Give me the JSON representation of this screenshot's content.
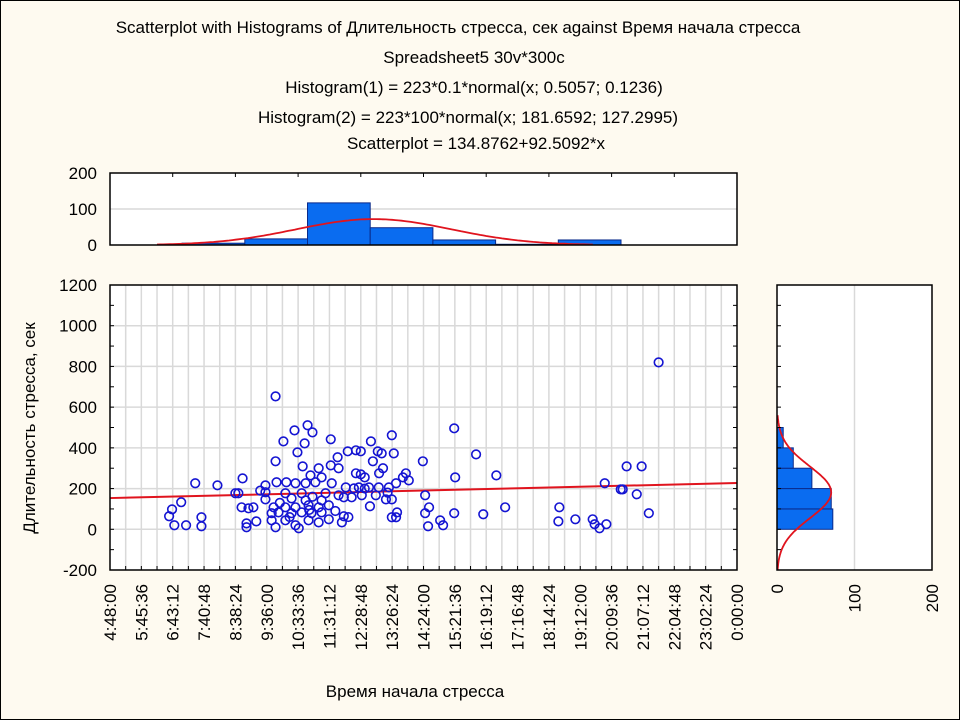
{
  "chart_data": [
    {
      "type": "text",
      "title_lines": [
        "Scatterplot with Histograms of Длительность стресса, сек against Время начала стресса",
        "Spreadsheet5 30v*300c",
        "Histogram(1) = 223*0.1*normal(x; 0.5057; 0.1236)",
        "Histogram(2) = 223*100*normal(x; 181.6592; 127.2995)",
        "Scatterplot = 134.8762+92.5092*x"
      ]
    },
    {
      "type": "bar",
      "name": "top-histogram",
      "bin_edges": [
        0.2,
        0.3,
        0.4,
        0.5,
        0.6,
        0.7,
        0.8,
        0.9
      ],
      "values": [
        5,
        17,
        117,
        48,
        14,
        2,
        14
      ],
      "xlim": [
        0.085,
        1.085
      ],
      "ylim": [
        0,
        200
      ],
      "yticks": [
        "200",
        "100",
        "0"
      ],
      "fit": {
        "n": 223,
        "binwidth": 0.1,
        "mean": 0.5057,
        "sd": 0.1236,
        "color": "#e0141e"
      },
      "bar_color": "#0a6cf0"
    },
    {
      "type": "scatter",
      "name": "main-scatter",
      "xlabel": "Время начала стресса",
      "ylabel": "Длительность стресса, сек",
      "xlim_hours": [
        4.8,
        24
      ],
      "ylim": [
        -200,
        1200
      ],
      "yticks": [
        "1200",
        "1000",
        "800",
        "600",
        "400",
        "200",
        "0",
        "-200"
      ],
      "xticks": [
        "4:48:00",
        "5:45:36",
        "6:43:12",
        "7:40:48",
        "8:38:24",
        "9:36:00",
        "10:33:36",
        "11:31:12",
        "12:28:48",
        "13:26:24",
        "14:24:00",
        "15:21:36",
        "16:19:12",
        "17:16:48",
        "18:14:24",
        "19:12:00",
        "20:09:36",
        "21:07:12",
        "22:04:48",
        "23:02:24",
        "0:00:00"
      ],
      "regression": {
        "intercept": 134.8762,
        "slope": 92.5092,
        "x_unit": "day-fraction",
        "color": "#e0141e"
      },
      "point_color": "#1414d2",
      "points": [
        [
          21.6,
          820
        ],
        [
          15.34,
          496
        ],
        [
          14.38,
          334
        ],
        [
          16.01,
          368
        ],
        [
          15.37,
          255
        ],
        [
          16.63,
          265
        ],
        [
          14.45,
          167
        ],
        [
          14.57,
          108
        ],
        [
          14.45,
          79
        ],
        [
          14.91,
          44
        ],
        [
          15.0,
          20
        ],
        [
          14.54,
          15
        ],
        [
          15.34,
          79
        ],
        [
          16.23,
          74
        ],
        [
          16.9,
          108
        ],
        [
          18.56,
          108
        ],
        [
          18.53,
          39
        ],
        [
          19.05,
          49
        ],
        [
          19.58,
          49
        ],
        [
          19.64,
          25
        ],
        [
          19.79,
          5
        ],
        [
          20.0,
          25
        ],
        [
          19.95,
          226
        ],
        [
          20.44,
          196
        ],
        [
          20.5,
          196
        ],
        [
          20.62,
          309
        ],
        [
          21.08,
          309
        ],
        [
          20.93,
          172
        ],
        [
          21.3,
          79
        ],
        [
          9.87,
          653
        ],
        [
          10.85,
          511
        ],
        [
          10.45,
          486
        ],
        [
          11.0,
          476
        ],
        [
          10.11,
          432
        ],
        [
          10.76,
          422
        ],
        [
          11.56,
          442
        ],
        [
          10.54,
          378
        ],
        [
          12.79,
          432
        ],
        [
          13.43,
          462
        ],
        [
          12.08,
          383
        ],
        [
          12.33,
          388
        ],
        [
          12.48,
          383
        ],
        [
          13.0,
          383
        ],
        [
          13.12,
          373
        ],
        [
          13.49,
          373
        ],
        [
          12.85,
          334
        ],
        [
          11.77,
          354
        ],
        [
          9.87,
          334
        ],
        [
          10.7,
          309
        ],
        [
          11.19,
          300
        ],
        [
          11.56,
          314
        ],
        [
          11.8,
          300
        ],
        [
          13.16,
          300
        ],
        [
          13.04,
          275
        ],
        [
          13.86,
          275
        ],
        [
          8.86,
          250
        ],
        [
          7.41,
          226
        ],
        [
          8.09,
          216
        ],
        [
          13.77,
          255
        ],
        [
          13.95,
          240
        ],
        [
          12.48,
          270
        ],
        [
          12.6,
          255
        ],
        [
          12.33,
          275
        ],
        [
          10.94,
          265
        ],
        [
          11.28,
          255
        ],
        [
          9.56,
          216
        ],
        [
          9.9,
          231
        ],
        [
          10.2,
          231
        ],
        [
          10.48,
          226
        ],
        [
          10.79,
          226
        ],
        [
          11.09,
          231
        ],
        [
          11.59,
          226
        ],
        [
          12.02,
          206
        ],
        [
          12.27,
          201
        ],
        [
          12.42,
          206
        ],
        [
          12.73,
          206
        ],
        [
          13.03,
          206
        ],
        [
          13.34,
          206
        ],
        [
          13.56,
          226
        ],
        [
          8.73,
          177
        ],
        [
          8.64,
          177
        ],
        [
          9.56,
          182
        ],
        [
          10.17,
          177
        ],
        [
          10.67,
          177
        ],
        [
          11.4,
          177
        ],
        [
          11.8,
          167
        ],
        [
          12.51,
          167
        ],
        [
          12.94,
          167
        ],
        [
          9.56,
          147
        ],
        [
          10.36,
          152
        ],
        [
          10.79,
          142
        ],
        [
          11.28,
          142
        ],
        [
          11.96,
          157
        ],
        [
          12.2,
          157
        ],
        [
          13.25,
          147
        ],
        [
          13.43,
          147
        ],
        [
          12.76,
          113
        ],
        [
          8.83,
          108
        ],
        [
          9.04,
          103
        ],
        [
          9.19,
          108
        ],
        [
          9.81,
          108
        ],
        [
          10.17,
          108
        ],
        [
          10.48,
          108
        ],
        [
          10.88,
          118
        ],
        [
          11.19,
          108
        ],
        [
          11.5,
          118
        ],
        [
          9.75,
          79
        ],
        [
          9.96,
          83
        ],
        [
          10.36,
          79
        ],
        [
          10.67,
          83
        ],
        [
          10.97,
          79
        ],
        [
          11.28,
          83
        ],
        [
          6.61,
          64
        ],
        [
          6.7,
          98
        ],
        [
          6.98,
          133
        ],
        [
          6.77,
          20
        ],
        [
          7.13,
          20
        ],
        [
          7.6,
          59
        ],
        [
          7.6,
          15
        ],
        [
          8.98,
          29
        ],
        [
          8.98,
          10
        ],
        [
          9.28,
          39
        ],
        [
          9.75,
          44
        ],
        [
          9.87,
          10
        ],
        [
          10.17,
          44
        ],
        [
          10.48,
          20
        ],
        [
          10.58,
          5
        ],
        [
          10.88,
          44
        ],
        [
          11.19,
          34
        ],
        [
          11.5,
          49
        ],
        [
          11.9,
          34
        ],
        [
          11.96,
          64
        ],
        [
          13.43,
          59
        ],
        [
          13.59,
          83
        ],
        [
          13.56,
          59
        ],
        [
          10.3,
          60
        ],
        [
          10.9,
          95
        ],
        [
          11.7,
          90
        ],
        [
          12.1,
          60
        ],
        [
          9.4,
          190
        ],
        [
          10.0,
          130
        ],
        [
          11.0,
          160
        ],
        [
          12.6,
          200
        ],
        [
          13.3,
          180
        ]
      ]
    },
    {
      "type": "bar",
      "orientation": "horizontal",
      "name": "right-histogram",
      "bin_edges": [
        0,
        100,
        200,
        300,
        400,
        500
      ],
      "values": [
        72,
        70,
        45,
        21,
        8
      ],
      "xlim": [
        0,
        200
      ],
      "xticks": [
        "0",
        "100",
        "200"
      ],
      "fit": {
        "n": 223,
        "binwidth": 100,
        "mean": 181.6592,
        "sd": 127.2995,
        "color": "#e0141e"
      },
      "bar_color": "#0a6cf0"
    }
  ]
}
